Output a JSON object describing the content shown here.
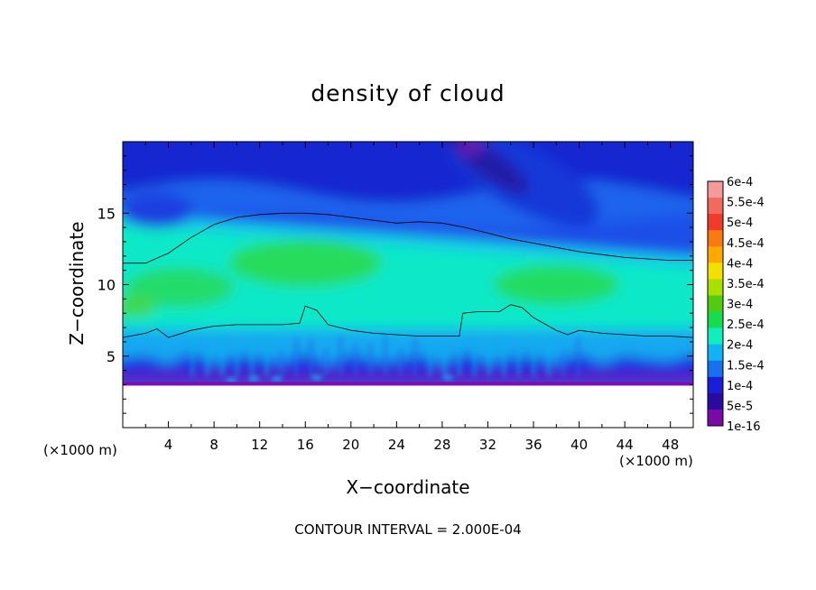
{
  "chart_data": {
    "type": "heatmap",
    "title": "density of cloud",
    "xlabel": "X−coordinate",
    "ylabel": "Z−coordinate",
    "x_unit_left": "(×1000 m)",
    "x_unit_right": "(×1000 m)",
    "xlim": [
      0,
      50
    ],
    "ylim": [
      0,
      20
    ],
    "x_ticks": [
      4,
      8,
      12,
      16,
      20,
      24,
      28,
      32,
      36,
      40,
      44,
      48
    ],
    "y_ticks": [
      5,
      10,
      15
    ],
    "colorbar": {
      "labels": [
        "6e-4",
        "5.5e-4",
        "5e-4",
        "4.5e-4",
        "4e-4",
        "3.5e-4",
        "3e-4",
        "2.5e-4",
        "2e-4",
        "1.5e-4",
        "1e-4",
        "5e-5",
        "1e-16"
      ],
      "colors": [
        "#f59a9a",
        "#f26a5e",
        "#f23a2a",
        "#f87a10",
        "#ffa800",
        "#f4e000",
        "#a8e000",
        "#52cc10",
        "#18dc50",
        "#10eec0",
        "#10b4f4",
        "#1670f0",
        "#1a1ed6",
        "#2c0aa0",
        "#7a0aa8"
      ]
    },
    "contour_lines": [
      {
        "value": "2.0e-4 (upper)",
        "points": [
          [
            0,
            11.5
          ],
          [
            2,
            11.5
          ],
          [
            4,
            12.2
          ],
          [
            6,
            13.3
          ],
          [
            8,
            14.2
          ],
          [
            10,
            14.7
          ],
          [
            12,
            14.9
          ],
          [
            14,
            15.0
          ],
          [
            16,
            15.0
          ],
          [
            18,
            14.9
          ],
          [
            20,
            14.7
          ],
          [
            22,
            14.5
          ],
          [
            24,
            14.3
          ],
          [
            26,
            14.4
          ],
          [
            28,
            14.3
          ],
          [
            30,
            14.0
          ],
          [
            32,
            13.6
          ],
          [
            34,
            13.2
          ],
          [
            36,
            12.9
          ],
          [
            38,
            12.6
          ],
          [
            40,
            12.3
          ],
          [
            42,
            12.1
          ],
          [
            44,
            11.9
          ],
          [
            46,
            11.8
          ],
          [
            48,
            11.7
          ],
          [
            50,
            11.7
          ]
        ]
      },
      {
        "value": "2.0e-4 (lower)",
        "points": [
          [
            0,
            6.3
          ],
          [
            2,
            6.6
          ],
          [
            3,
            6.9
          ],
          [
            4,
            6.3
          ],
          [
            6,
            6.8
          ],
          [
            8,
            7.1
          ],
          [
            10,
            7.2
          ],
          [
            12,
            7.2
          ],
          [
            14,
            7.2
          ],
          [
            15.5,
            7.3
          ],
          [
            16,
            8.5
          ],
          [
            17,
            8.2
          ],
          [
            18,
            7.2
          ],
          [
            20,
            6.8
          ],
          [
            22,
            6.6
          ],
          [
            24,
            6.5
          ],
          [
            26,
            6.4
          ],
          [
            28,
            6.4
          ],
          [
            29.5,
            6.4
          ],
          [
            29.8,
            8.0
          ],
          [
            31,
            8.1
          ],
          [
            33,
            8.1
          ],
          [
            34,
            8.6
          ],
          [
            35,
            8.4
          ],
          [
            36,
            7.7
          ],
          [
            38,
            6.8
          ],
          [
            39,
            6.5
          ],
          [
            40,
            6.8
          ],
          [
            42,
            6.6
          ],
          [
            44,
            6.5
          ],
          [
            46,
            6.4
          ],
          [
            48,
            6.4
          ],
          [
            50,
            6.3
          ]
        ]
      }
    ],
    "ground_level_z": 3.0,
    "notes": "CONTOUR INTERVAL = 2.000E-04"
  }
}
